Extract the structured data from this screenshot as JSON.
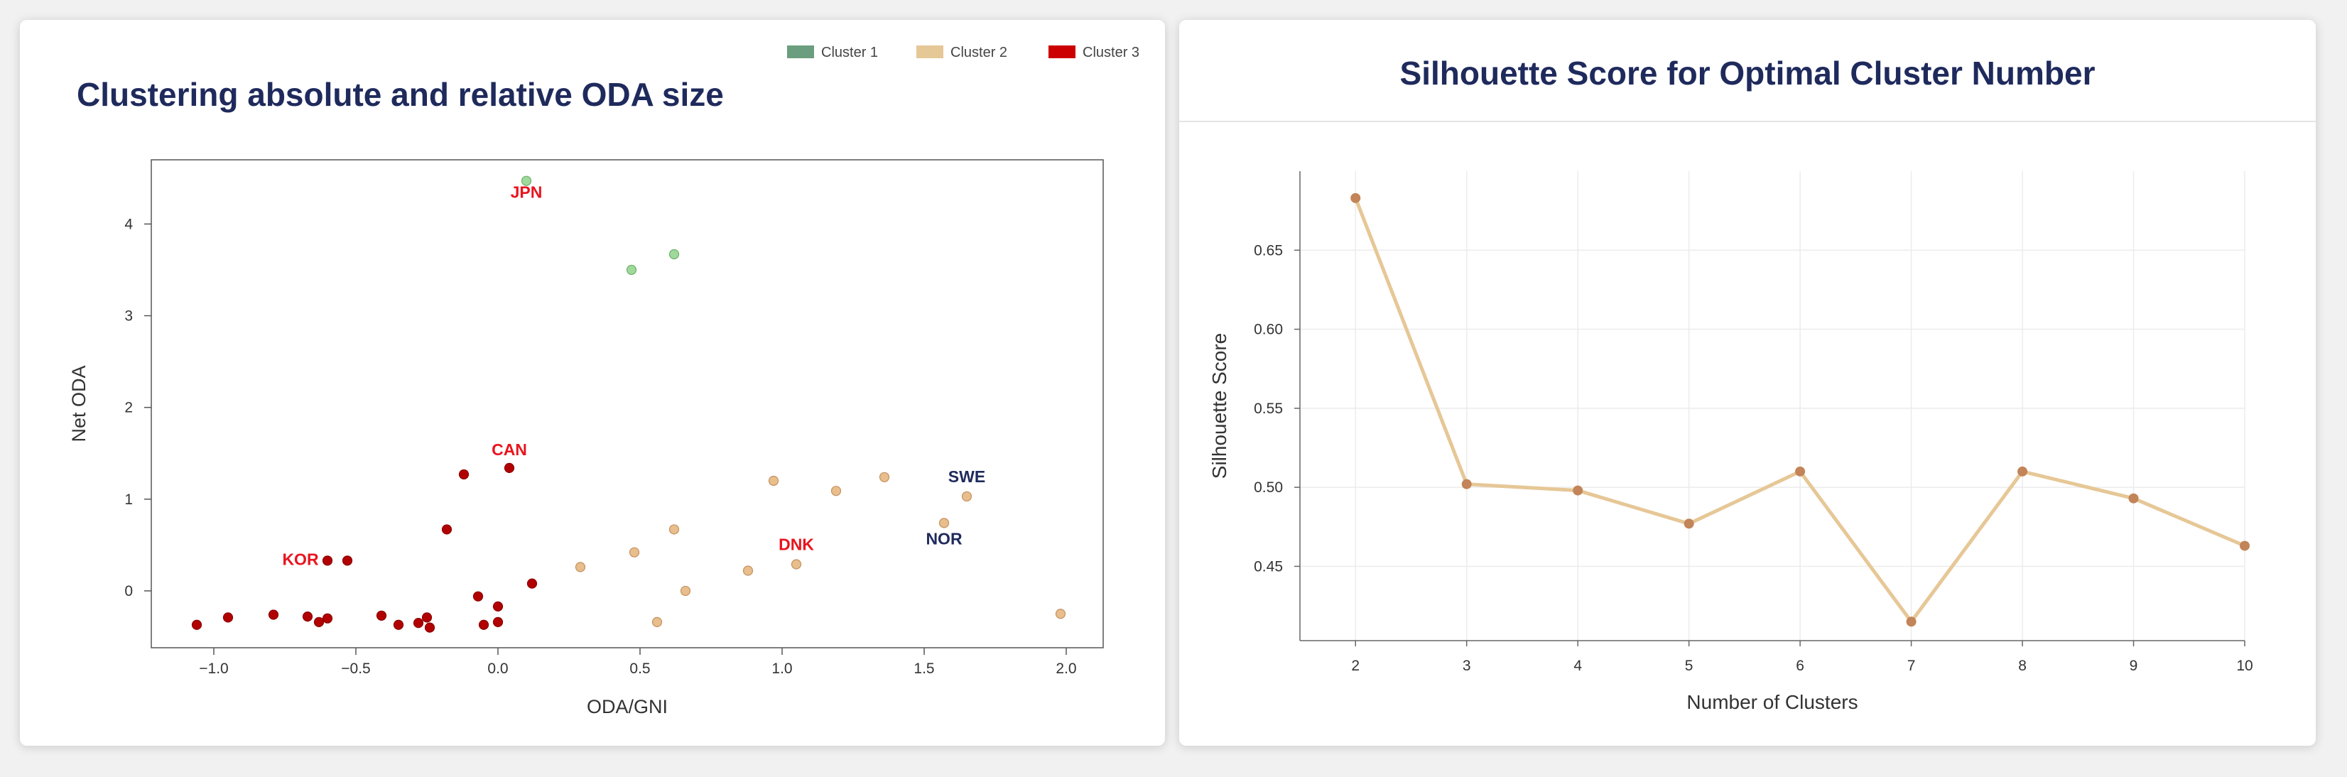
{
  "left_panel": {
    "title": "Clustering absolute and relative ODA size"
  },
  "right_panel": {
    "title": "Silhouette Score for Optimal Cluster Number"
  },
  "colors": {
    "cluster1_legend": "#6b9e7e",
    "cluster2_legend": "#e6c796",
    "cluster3_legend": "#cc0000",
    "cluster1_point": "#9fd99b",
    "cluster2_point": "#e8be8c",
    "cluster3_point": "#b20000",
    "line": "#e6c796",
    "line_point": "#c28458",
    "title": "#1f2a5c",
    "label_red": "#e8141d",
    "label_navy": "#1f2a5c"
  },
  "chart_data": [
    {
      "type": "scatter",
      "title": "Clustering absolute and relative ODA size",
      "xlabel": "ODA/GNI",
      "ylabel": "Net ODA",
      "xlim": [
        -1.22,
        2.13
      ],
      "ylim": [
        -0.62,
        4.7
      ],
      "xticks": [
        -1.0,
        -0.5,
        0.0,
        0.5,
        1.0,
        1.5,
        2.0
      ],
      "xtick_labels": [
        "−1.0",
        "−0.5",
        "0.0",
        "0.5",
        "1.0",
        "1.5",
        "2.0"
      ],
      "yticks": [
        0,
        1,
        2,
        3,
        4
      ],
      "ytick_labels": [
        "0",
        "1",
        "2",
        "3",
        "4"
      ],
      "grid": false,
      "legend_position": "top-right",
      "series": [
        {
          "name": "Cluster 1",
          "points": [
            [
              0.1,
              4.47
            ],
            [
              0.47,
              3.5
            ],
            [
              0.62,
              3.67
            ]
          ]
        },
        {
          "name": "Cluster 2",
          "points": [
            [
              0.29,
              0.26
            ],
            [
              0.48,
              0.42
            ],
            [
              0.56,
              -0.34
            ],
            [
              0.62,
              0.67
            ],
            [
              0.66,
              0.0
            ],
            [
              0.88,
              0.22
            ],
            [
              0.97,
              1.2
            ],
            [
              1.05,
              0.29
            ],
            [
              1.19,
              1.09
            ],
            [
              1.36,
              1.24
            ],
            [
              1.57,
              0.74
            ],
            [
              1.65,
              1.03
            ],
            [
              1.98,
              -0.25
            ]
          ]
        },
        {
          "name": "Cluster 3",
          "points": [
            [
              -1.06,
              -0.37
            ],
            [
              -0.95,
              -0.29
            ],
            [
              -0.79,
              -0.26
            ],
            [
              -0.67,
              -0.28
            ],
            [
              -0.63,
              -0.34
            ],
            [
              -0.6,
              -0.3
            ],
            [
              -0.6,
              0.33
            ],
            [
              -0.53,
              0.33
            ],
            [
              -0.41,
              -0.27
            ],
            [
              -0.35,
              -0.37
            ],
            [
              -0.28,
              -0.35
            ],
            [
              -0.25,
              -0.29
            ],
            [
              -0.24,
              -0.4
            ],
            [
              -0.18,
              0.67
            ],
            [
              -0.12,
              1.27
            ],
            [
              -0.07,
              -0.06
            ],
            [
              -0.05,
              -0.37
            ],
            [
              0.0,
              -0.34
            ],
            [
              0.0,
              -0.17
            ],
            [
              0.04,
              1.34
            ],
            [
              0.12,
              0.08
            ]
          ]
        }
      ],
      "annotations": [
        {
          "text": "JPN",
          "x": 0.1,
          "y": 4.47,
          "color": "red",
          "dx": 0,
          "dy": 24
        },
        {
          "text": "CAN",
          "x": 0.04,
          "y": 1.34,
          "color": "red",
          "dx": 0,
          "dy": -18
        },
        {
          "text": "KOR",
          "x": -0.6,
          "y": 0.33,
          "color": "red",
          "dx": -38,
          "dy": 6
        },
        {
          "text": "DNK",
          "x": 1.05,
          "y": 0.29,
          "color": "red",
          "dx": 0,
          "dy": -20
        },
        {
          "text": "SWE",
          "x": 1.65,
          "y": 1.03,
          "color": "navy",
          "dx": 0,
          "dy": -20
        },
        {
          "text": "NOR",
          "x": 1.57,
          "y": 0.74,
          "color": "navy",
          "dx": 0,
          "dy": 30
        }
      ]
    },
    {
      "type": "line",
      "title": "Silhouette Score for Optimal Cluster Number",
      "xlabel": "Number of Clusters",
      "ylabel": "Silhouette Score",
      "x": [
        2,
        3,
        4,
        5,
        6,
        7,
        8,
        9,
        10
      ],
      "y": [
        0.683,
        0.502,
        0.498,
        0.477,
        0.51,
        0.415,
        0.51,
        0.493,
        0.463
      ],
      "xlim": [
        1.5,
        10
      ],
      "ylim": [
        0.403,
        0.7
      ],
      "xticks": [
        2,
        3,
        4,
        5,
        6,
        7,
        8,
        9,
        10
      ],
      "yticks": [
        0.45,
        0.5,
        0.55,
        0.6,
        0.65
      ],
      "ytick_labels": [
        "0.45",
        "0.50",
        "0.55",
        "0.60",
        "0.65"
      ],
      "grid": true
    }
  ]
}
